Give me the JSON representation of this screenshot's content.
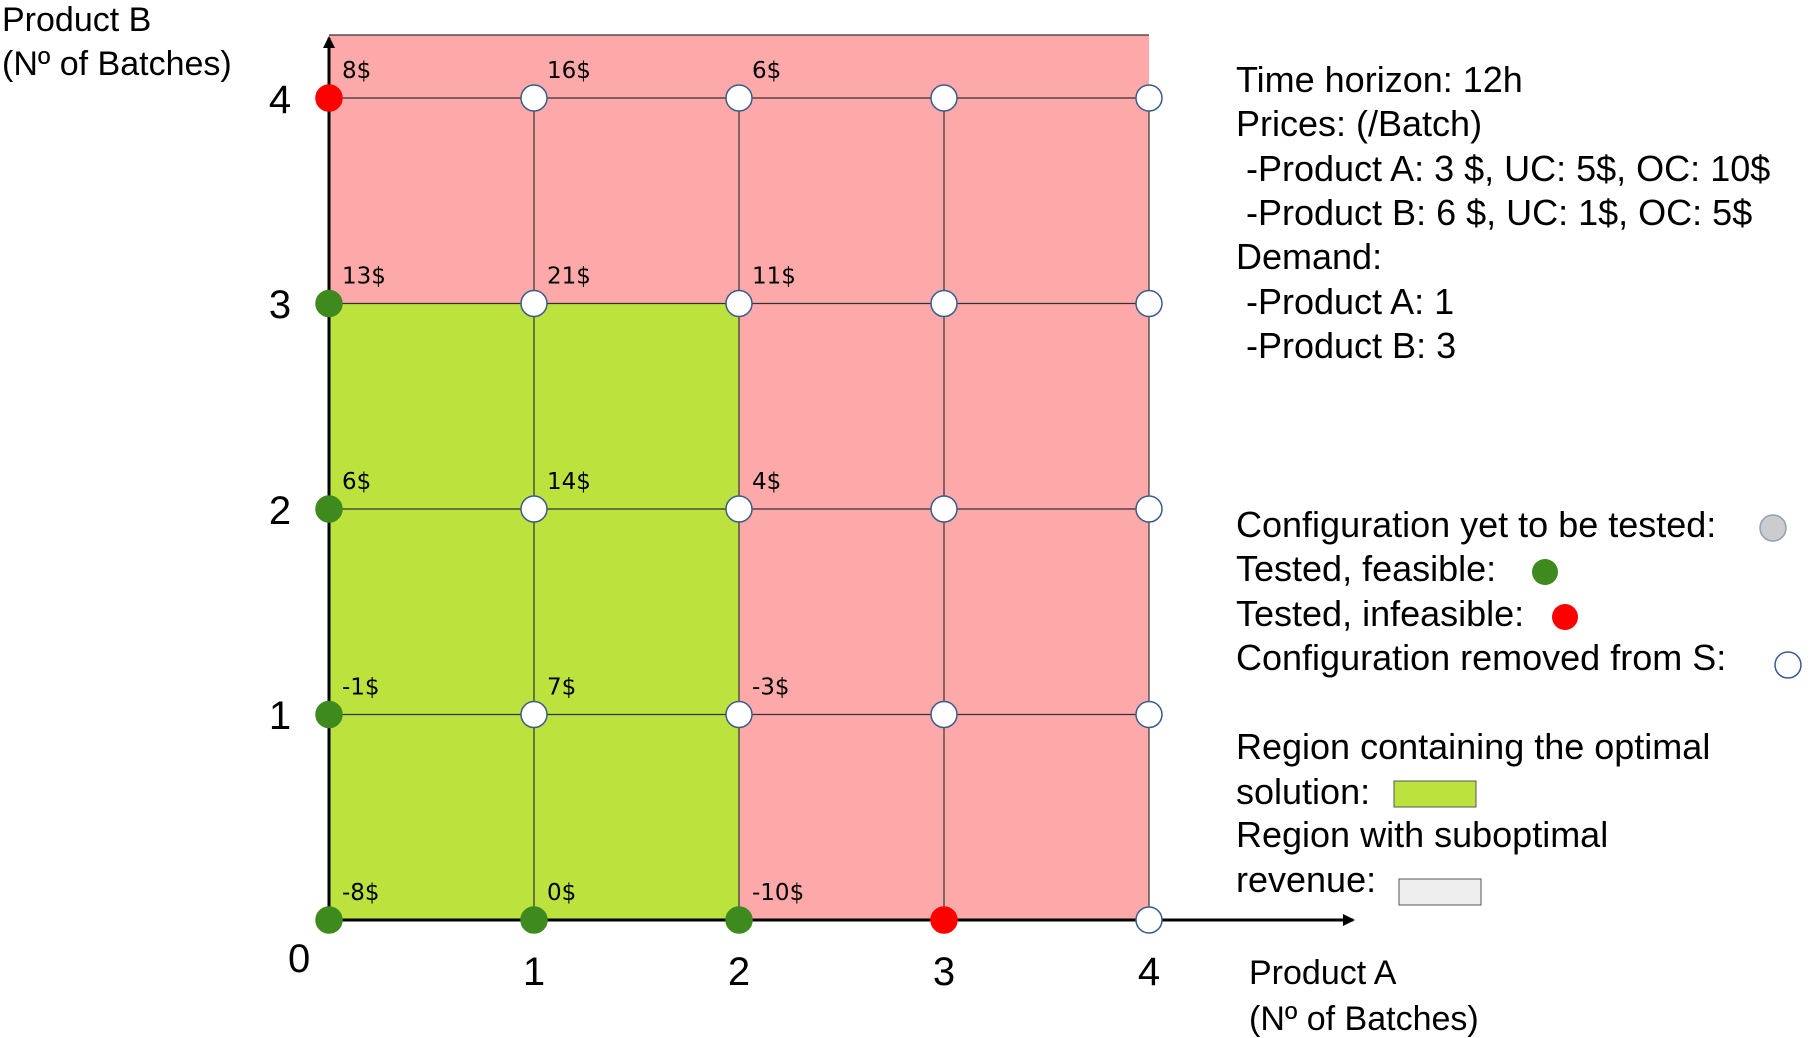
{
  "axes": {
    "x_title_line1": "Product A",
    "x_title_line2": "(Nº of Batches)",
    "y_title_line1": "Product B",
    "y_title_line2": "(Nº of Batches)",
    "origin_label": "0",
    "x_ticks": [
      "1",
      "2",
      "3",
      "4"
    ],
    "y_ticks": [
      "1",
      "2",
      "3",
      "4"
    ]
  },
  "colors": {
    "optimal_region": "#bce23d",
    "suboptimal_region": "#fea9a9",
    "feasible": "#3f8a1f",
    "infeasible": "#ff0000",
    "removed": "#ffffff",
    "untested": "#cccccc",
    "grid": "#333333",
    "legend_suboptimal_swatch": "#eeeeee"
  },
  "chart_data": {
    "type": "scatter",
    "grid": true,
    "xlim": [
      0,
      4
    ],
    "ylim": [
      0,
      4
    ],
    "optimal_region": {
      "x": [
        0,
        2
      ],
      "y": [
        0,
        3
      ]
    },
    "points": [
      {
        "x": 0,
        "y": 0,
        "status": "feasible",
        "label": "-8$"
      },
      {
        "x": 1,
        "y": 0,
        "status": "feasible",
        "label": "0$"
      },
      {
        "x": 2,
        "y": 0,
        "status": "feasible",
        "label": "-10$"
      },
      {
        "x": 3,
        "y": 0,
        "status": "infeasible",
        "label": ""
      },
      {
        "x": 4,
        "y": 0,
        "status": "removed",
        "label": ""
      },
      {
        "x": 0,
        "y": 1,
        "status": "feasible",
        "label": "-1$"
      },
      {
        "x": 1,
        "y": 1,
        "status": "removed",
        "label": "7$"
      },
      {
        "x": 2,
        "y": 1,
        "status": "removed",
        "label": "-3$"
      },
      {
        "x": 3,
        "y": 1,
        "status": "removed",
        "label": ""
      },
      {
        "x": 4,
        "y": 1,
        "status": "removed",
        "label": ""
      },
      {
        "x": 0,
        "y": 2,
        "status": "feasible",
        "label": "6$"
      },
      {
        "x": 1,
        "y": 2,
        "status": "removed",
        "label": "14$"
      },
      {
        "x": 2,
        "y": 2,
        "status": "removed",
        "label": "4$"
      },
      {
        "x": 3,
        "y": 2,
        "status": "removed",
        "label": ""
      },
      {
        "x": 4,
        "y": 2,
        "status": "removed",
        "label": ""
      },
      {
        "x": 0,
        "y": 3,
        "status": "feasible",
        "label": "13$"
      },
      {
        "x": 1,
        "y": 3,
        "status": "removed",
        "label": "21$"
      },
      {
        "x": 2,
        "y": 3,
        "status": "removed",
        "label": "11$"
      },
      {
        "x": 3,
        "y": 3,
        "status": "removed",
        "label": ""
      },
      {
        "x": 4,
        "y": 3,
        "status": "removed",
        "label": ""
      },
      {
        "x": 0,
        "y": 4,
        "status": "infeasible",
        "label": "8$"
      },
      {
        "x": 1,
        "y": 4,
        "status": "removed",
        "label": "16$"
      },
      {
        "x": 2,
        "y": 4,
        "status": "removed",
        "label": "6$"
      },
      {
        "x": 3,
        "y": 4,
        "status": "removed",
        "label": ""
      },
      {
        "x": 4,
        "y": 4,
        "status": "removed",
        "label": ""
      }
    ]
  },
  "info": [
    "Time horizon: 12h",
    "Prices: (/Batch)",
    " -Product A: 3 $, UC: 5$, OC: 10$",
    " -Product B: 6 $, UC: 1$, OC: 5$",
    "Demand:",
    " -Product A: 1",
    " -Product B: 3"
  ],
  "legend": {
    "untested": "Configuration yet to be tested:",
    "feasible": "Tested, feasible:",
    "infeasible": "Tested, infeasible:",
    "removed": "Configuration removed from S:",
    "optimal_line1": "Region containing the optimal",
    "optimal_line2": "solution:",
    "suboptimal_line1": "Region with suboptimal",
    "suboptimal_line2": "revenue:"
  }
}
